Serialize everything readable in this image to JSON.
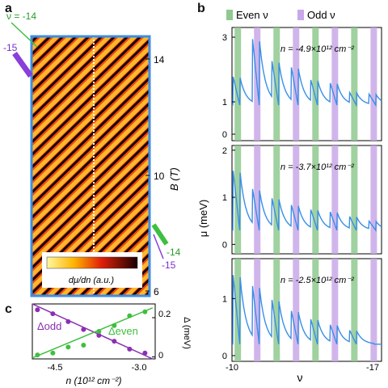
{
  "panels": {
    "a": {
      "letter": "a",
      "top_annotation": "ν = -14",
      "left_annotation": "-15",
      "right_annotation_top": "-14",
      "right_annotation_bottom": "-15",
      "y_ticks": [
        "14",
        "10",
        "6"
      ],
      "y_label": "B (T)",
      "colorbar_label": "dμ/dn (a.u.)",
      "colors": {
        "frame": "#3a8ee6",
        "green": "#3fbf3f",
        "purple": "#8b3fd9"
      }
    },
    "b": {
      "letter": "b",
      "legend": [
        {
          "label": "Even ν",
          "color": "#8fc98f"
        },
        {
          "label": "Odd ν",
          "color": "#c8a8e8"
        }
      ],
      "y_label": "μ (meV)",
      "x_label": "ν",
      "x_tick_labels": [
        "-10",
        "-17"
      ],
      "subplots": [
        {
          "annotation": "n = -4.9×10¹² cm⁻²",
          "y_ticks": [
            "3",
            "1",
            "0"
          ]
        },
        {
          "annotation": "n = -3.7×10¹² cm⁻²",
          "y_ticks": [
            "2",
            "1",
            "0"
          ]
        },
        {
          "annotation": "n = -2.5×10¹² cm⁻²",
          "y_ticks": [
            "1",
            "0"
          ]
        }
      ]
    },
    "c": {
      "letter": "c",
      "x_tick_labels": [
        "-4.5",
        "-3.0"
      ],
      "x_label": "n (10¹² cm⁻²)",
      "y_tick_labels": [
        "0.2",
        "0"
      ],
      "y_label": "Δ (meV)",
      "odd_label": "Δodd",
      "even_label": "Δeven"
    }
  },
  "chart_data": [
    {
      "type": "heatmap",
      "panel": "a",
      "ylabel": "B (T)",
      "ylim": [
        6,
        15
      ],
      "colorbar": "dμ/dn (a.u.)",
      "annotations": [
        "ν = -14",
        "-15",
        "-14",
        "-15"
      ]
    },
    {
      "type": "line",
      "panel": "b",
      "xlabel": "ν",
      "ylabel": "μ (meV)",
      "xlim": [
        -9.7,
        -17.4
      ],
      "legend": [
        "Even ν",
        "Odd ν"
      ],
      "even_nu": [
        -10,
        -12,
        -14,
        -16
      ],
      "odd_nu": [
        -11,
        -13,
        -15,
        -17
      ],
      "series": [
        {
          "n_label": "n = -4.9×10¹² cm⁻²",
          "ylim": [
            -0.2,
            3.3
          ],
          "peaks": [
            {
              "nu": -10.1,
              "mu": 1.8
            },
            {
              "nu": -11.1,
              "mu": 3.0
            },
            {
              "nu": -12.1,
              "mu": 2.3
            },
            {
              "nu": -13.1,
              "mu": 2.1
            },
            {
              "nu": -14.1,
              "mu": 1.7
            },
            {
              "nu": -15.1,
              "mu": 1.6
            },
            {
              "nu": -16.1,
              "mu": 1.3
            },
            {
              "nu": -17.1,
              "mu": 1.25
            }
          ],
          "baseline": 0.9
        },
        {
          "n_label": "n = -3.7×10¹² cm⁻²",
          "ylim": [
            -0.2,
            2.1
          ],
          "peaks": [
            {
              "nu": -10.1,
              "mu": 1.6
            },
            {
              "nu": -11.1,
              "mu": 1.2
            },
            {
              "nu": -12.1,
              "mu": 1.0
            },
            {
              "nu": -13.1,
              "mu": 0.85
            },
            {
              "nu": -14.1,
              "mu": 0.75
            },
            {
              "nu": -15.1,
              "mu": 0.7
            },
            {
              "nu": -16.1,
              "mu": 0.6
            },
            {
              "nu": -17.1,
              "mu": 0.5
            }
          ],
          "baseline": 0.3
        },
        {
          "n_label": "n = -2.5×10¹² cm⁻²",
          "ylim": [
            -0.1,
            1.7
          ],
          "peaks": [
            {
              "nu": -10.1,
              "mu": 1.45
            },
            {
              "nu": -11.1,
              "mu": 1.25
            },
            {
              "nu": -12.1,
              "mu": 1.0
            },
            {
              "nu": -13.1,
              "mu": 0.8
            },
            {
              "nu": -14.1,
              "mu": 0.65
            },
            {
              "nu": -15.1,
              "mu": 0.55
            },
            {
              "nu": -16.1,
              "mu": 0.45
            },
            {
              "nu": -17.1,
              "mu": 0.15
            }
          ],
          "baseline": 0.2
        }
      ]
    },
    {
      "type": "scatter",
      "panel": "c",
      "xlabel": "n (10¹² cm⁻²)",
      "ylabel": "Δ (meV)",
      "xlim": [
        -5.0,
        -2.6
      ],
      "ylim": [
        -0.01,
        0.27
      ],
      "series": [
        {
          "name": "Δodd",
          "color": "#8b2fb3",
          "x": [
            -4.9,
            -4.6,
            -4.3,
            -4.0,
            -3.7,
            -3.4,
            -3.1,
            -2.8
          ],
          "y": [
            0.24,
            0.22,
            0.18,
            0.14,
            0.11,
            0.08,
            0.04,
            0.02
          ],
          "fit": [
            [
              -5.0,
              0.27
            ],
            [
              -2.65,
              -0.01
            ]
          ]
        },
        {
          "name": "Δeven",
          "color": "#3fbf3f",
          "x": [
            -4.9,
            -4.6,
            -4.3,
            -4.0,
            -3.7,
            -3.4,
            -3.1,
            -2.8
          ],
          "y": [
            0.01,
            0.02,
            0.05,
            0.06,
            0.13,
            0.16,
            0.21,
            0.23
          ],
          "fit": [
            [
              -5.0,
              -0.005
            ],
            [
              -2.65,
              0.25
            ]
          ]
        }
      ]
    }
  ]
}
